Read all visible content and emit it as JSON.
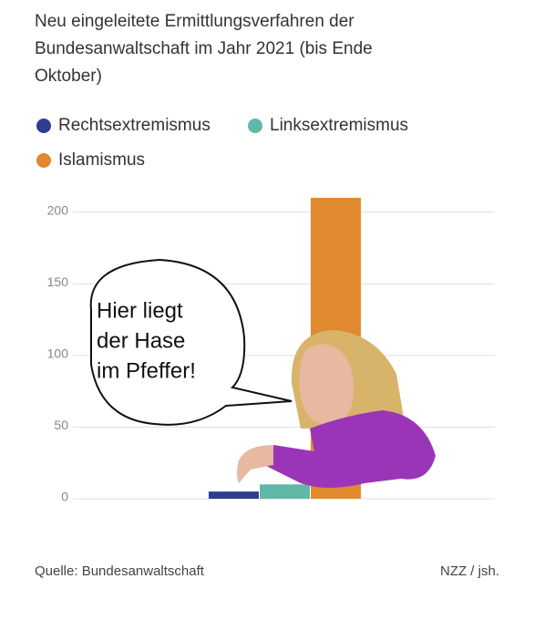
{
  "chart_data": {
    "type": "bar",
    "title": [
      "Neu eingeleitete Ermittlungsverfahren der",
      "Bundesanwaltschaft im Jahr 2021 (bis Ende",
      "Oktober)"
    ],
    "categories": [
      null
    ],
    "series": [
      {
        "name": "Rechtsextremismus",
        "color": "#2e3d8f",
        "values": [
          5
        ]
      },
      {
        "name": "Linksextremismus",
        "color": "#5fb8a8",
        "values": [
          10
        ]
      },
      {
        "name": "Islamismus",
        "color": "#e0892f",
        "values": [
          210
        ]
      }
    ],
    "ylim": [
      0,
      210
    ],
    "yticks": [
      0,
      50,
      100,
      150,
      200
    ],
    "grid": true,
    "annotation": [
      "Hier liegt",
      "der Hase",
      "im Pfeffer!"
    ],
    "source": "Quelle: Bundesanwaltschaft",
    "credit": "NZZ / jsh."
  }
}
